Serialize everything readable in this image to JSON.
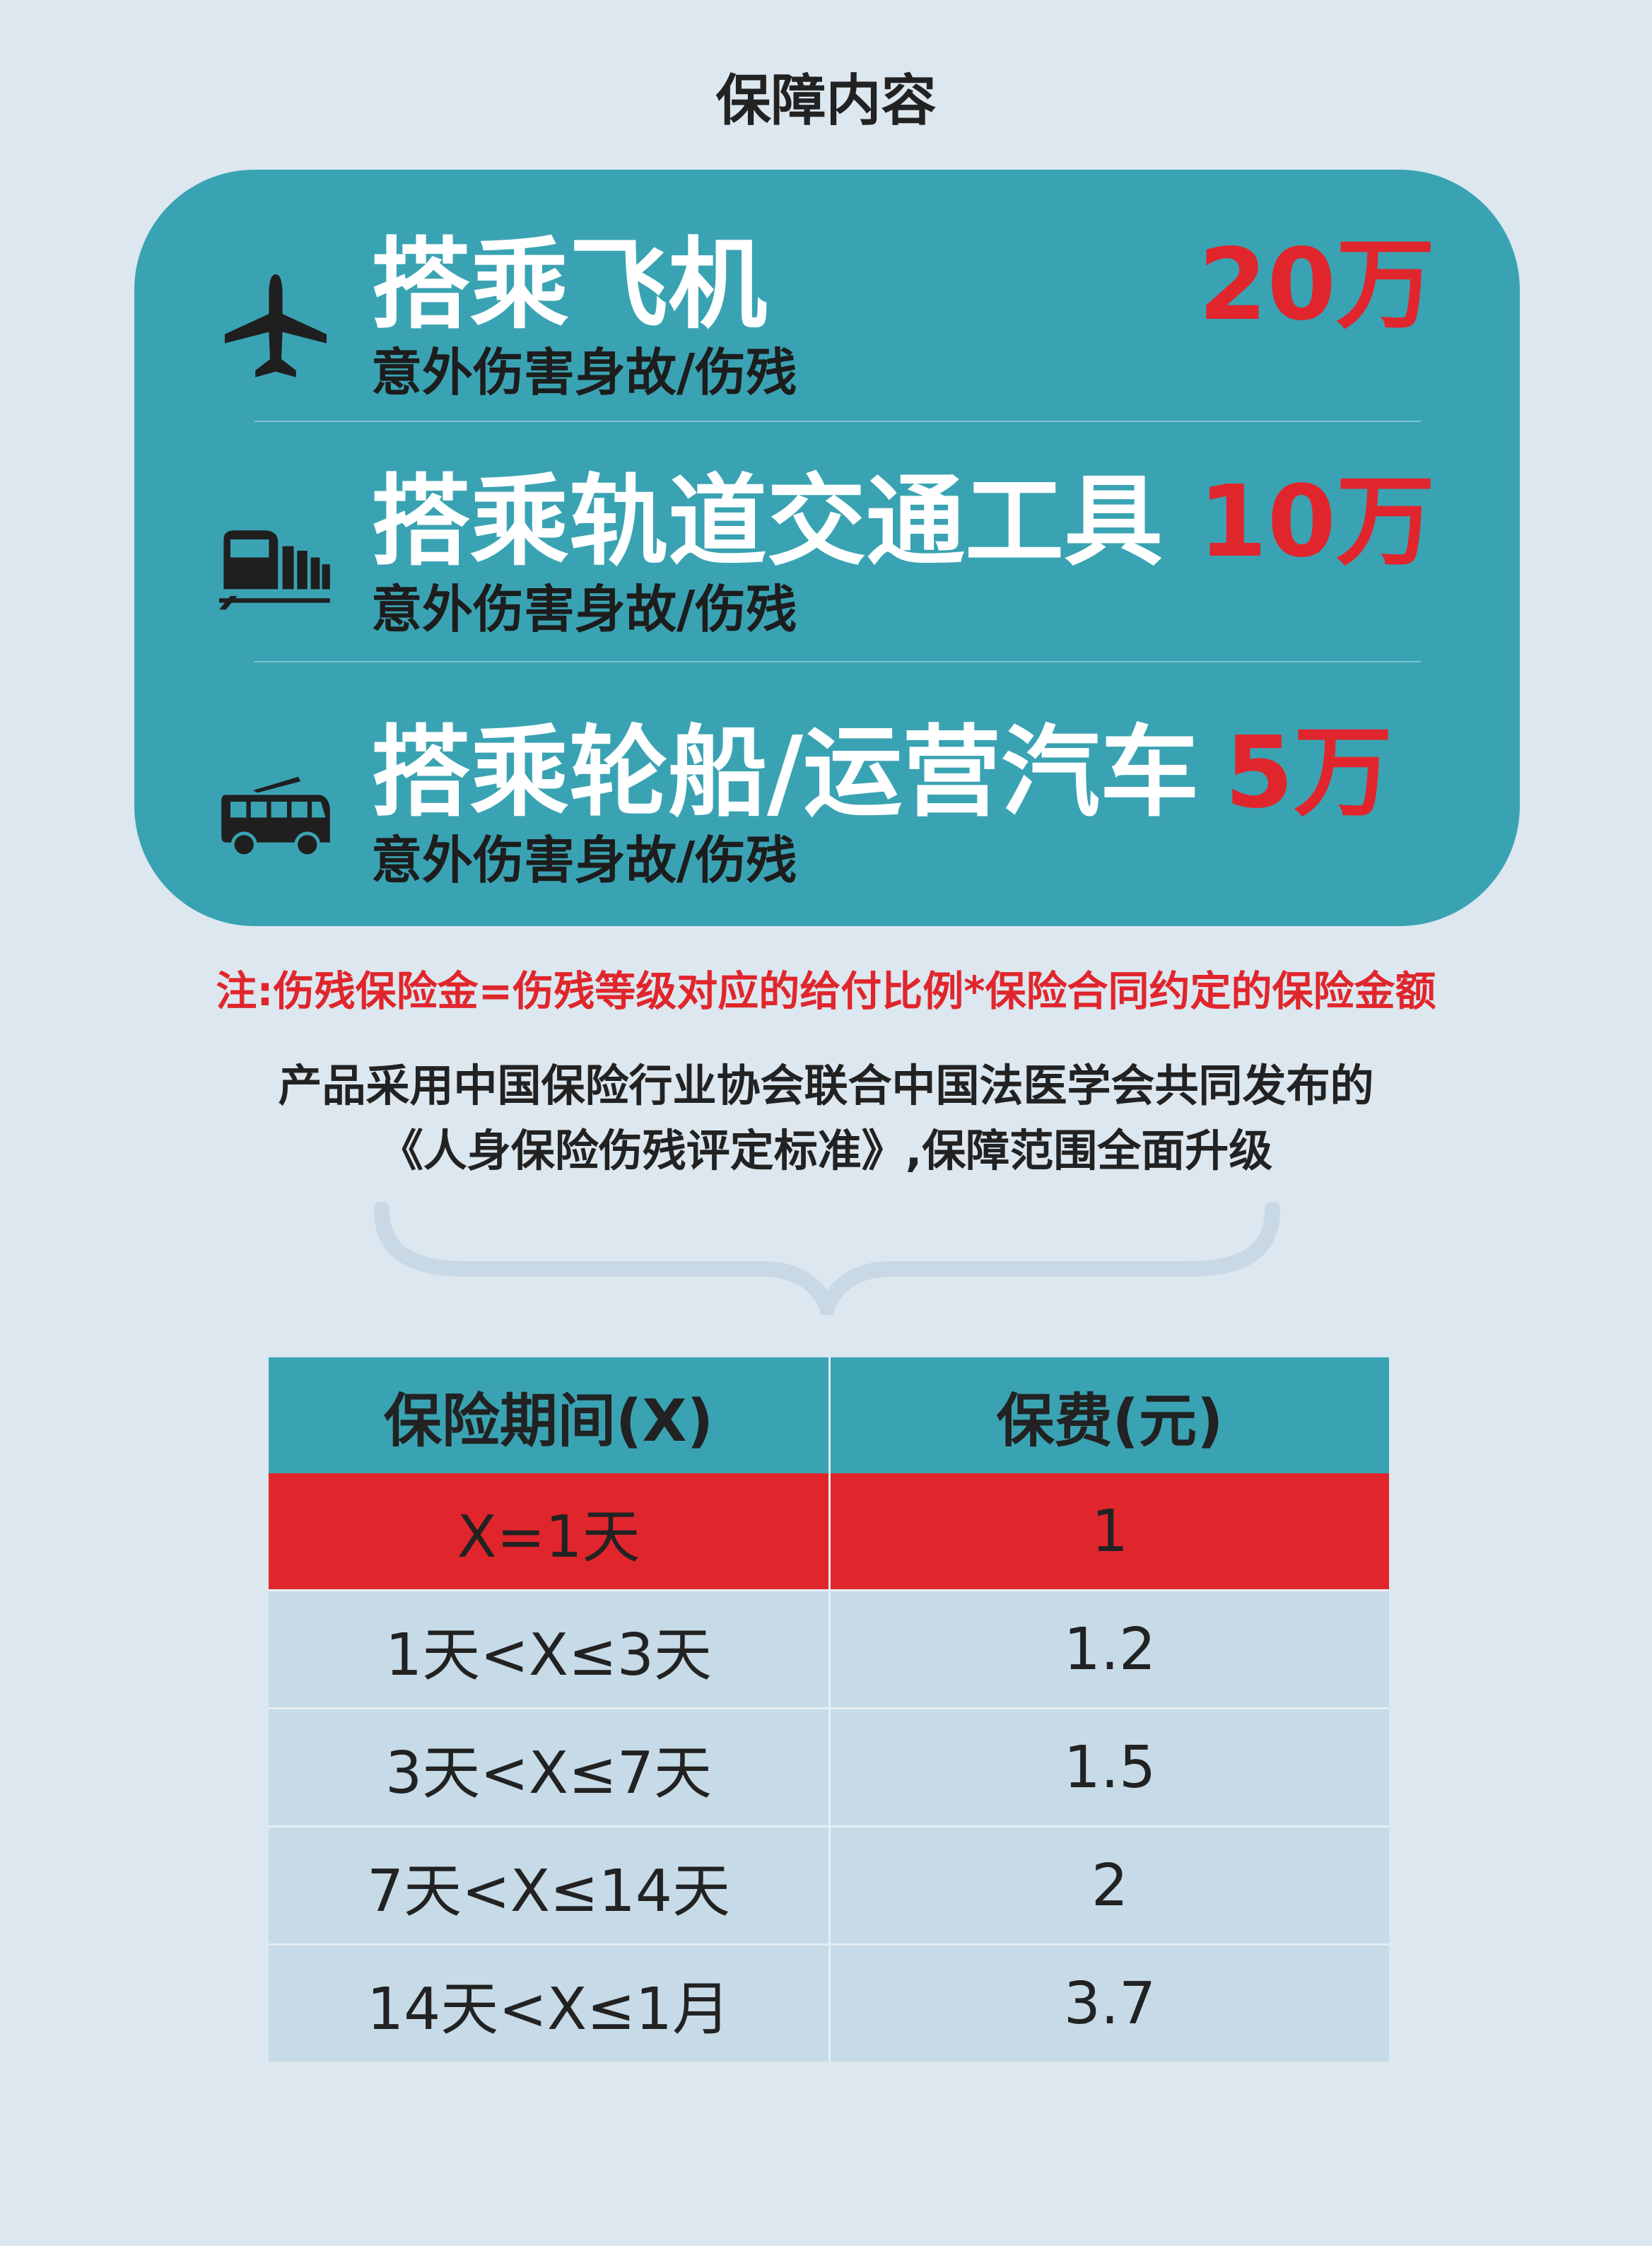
{
  "title": "保障内容",
  "coverage": [
    {
      "icon": "airplane-icon",
      "main": "搭乘飞机",
      "sub": "意外伤害身故/伤残",
      "amount": "20万"
    },
    {
      "icon": "train-icon",
      "main": "搭乘轨道交通工具",
      "sub": "意外伤害身故/伤残",
      "amount": "10万"
    },
    {
      "icon": "bus-icon",
      "main": "搭乘轮船/运营汽车",
      "sub": "意外伤害身故/伤残",
      "amount": "5万"
    }
  ],
  "note": "注:伤残保险金=伤残等级对应的给付比例*保险合同约定的保险金额",
  "description": {
    "line1": "产品采用中国保险行业协会联合中国法医学会共同发布的",
    "line2": "《人身保险伤残评定标准》,保障范围全面升级"
  },
  "table": {
    "headers": [
      "保险期间(X)",
      "保费(元)"
    ],
    "rows": [
      [
        "X=1天",
        "1"
      ],
      [
        "1天<X≤3天",
        "1.2"
      ],
      [
        "3天<X≤7天",
        "1.5"
      ],
      [
        "7天<X≤14天",
        "2"
      ],
      [
        "14天<X≤1月",
        "3.7"
      ]
    ]
  },
  "colors": {
    "accent": "#3aa3b3",
    "highlight": "#e0262c",
    "background": "#dce7ef"
  }
}
